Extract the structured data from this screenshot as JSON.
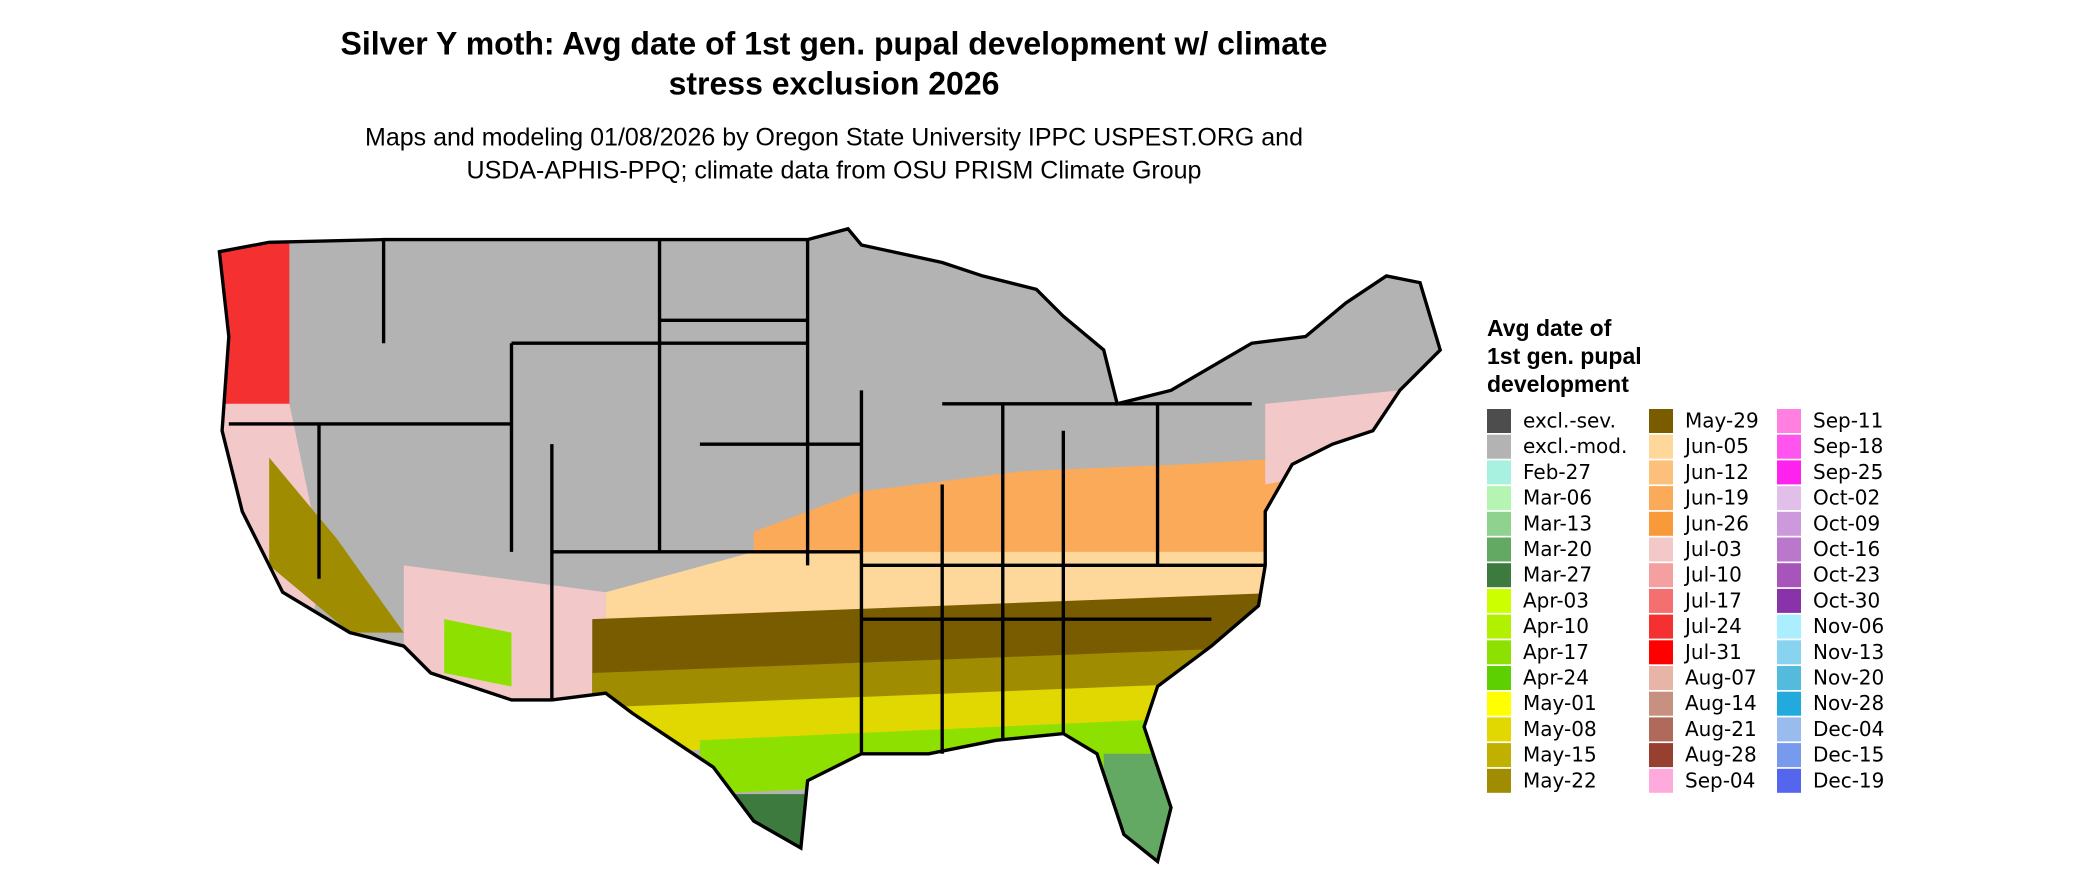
{
  "title": [
    "Silver Y moth: Avg date of 1st gen. pupal development w/ climate",
    "stress exclusion 2026"
  ],
  "subtitle": [
    "Maps and modeling 01/08/2026 by Oregon State University IPPC USPEST.ORG and",
    "USDA-APHIS-PPQ; climate data from OSU PRISM Climate Group"
  ],
  "legend": {
    "title": [
      "Avg date of",
      "1st gen. pupal",
      "development"
    ],
    "items": [
      {
        "label": "excl.-sev.",
        "color": "#4d4d4d"
      },
      {
        "label": "excl.-mod.",
        "color": "#b3b3b3"
      },
      {
        "label": "Feb-27",
        "color": "#a8f0e0"
      },
      {
        "label": "Mar-06",
        "color": "#b4f5b4"
      },
      {
        "label": "Mar-13",
        "color": "#8fd18f"
      },
      {
        "label": "Mar-20",
        "color": "#63a863"
      },
      {
        "label": "Mar-27",
        "color": "#3d7a3d"
      },
      {
        "label": "Apr-03",
        "color": "#ccff00"
      },
      {
        "label": "Apr-10",
        "color": "#b0f000"
      },
      {
        "label": "Apr-17",
        "color": "#8ee000"
      },
      {
        "label": "Apr-24",
        "color": "#5cd000"
      },
      {
        "label": "May-01",
        "color": "#ffff00"
      },
      {
        "label": "May-08",
        "color": "#e0d800"
      },
      {
        "label": "May-15",
        "color": "#c0b000"
      },
      {
        "label": "May-22",
        "color": "#a08c00"
      },
      {
        "label": "May-29",
        "color": "#7a5c00"
      },
      {
        "label": "Jun-05",
        "color": "#fdd89a"
      },
      {
        "label": "Jun-12",
        "color": "#fcc07a"
      },
      {
        "label": "Jun-19",
        "color": "#fbaa5a"
      },
      {
        "label": "Jun-26",
        "color": "#f99a3a"
      },
      {
        "label": "Jul-03",
        "color": "#f3c8c8"
      },
      {
        "label": "Jul-10",
        "color": "#f4a0a0"
      },
      {
        "label": "Jul-17",
        "color": "#f47070"
      },
      {
        "label": "Jul-24",
        "color": "#f43030"
      },
      {
        "label": "Jul-31",
        "color": "#ff0000"
      },
      {
        "label": "Aug-07",
        "color": "#e8b4a8"
      },
      {
        "label": "Aug-14",
        "color": "#c89080"
      },
      {
        "label": "Aug-21",
        "color": "#b06a5c"
      },
      {
        "label": "Aug-28",
        "color": "#984030"
      },
      {
        "label": "Sep-04",
        "color": "#ffaadd"
      },
      {
        "label": "Sep-11",
        "color": "#ff80e0"
      },
      {
        "label": "Sep-18",
        "color": "#ff55ee"
      },
      {
        "label": "Sep-25",
        "color": "#ff22ee"
      },
      {
        "label": "Oct-02",
        "color": "#e0c0e8"
      },
      {
        "label": "Oct-09",
        "color": "#cc99dd"
      },
      {
        "label": "Oct-16",
        "color": "#bb77cc"
      },
      {
        "label": "Oct-23",
        "color": "#a855bb"
      },
      {
        "label": "Oct-30",
        "color": "#8833aa"
      },
      {
        "label": "Nov-06",
        "color": "#aaeeff"
      },
      {
        "label": "Nov-13",
        "color": "#88d4f0"
      },
      {
        "label": "Nov-20",
        "color": "#55bbdd"
      },
      {
        "label": "Nov-28",
        "color": "#22aadd"
      },
      {
        "label": "Dec-04",
        "color": "#99bbee"
      },
      {
        "label": "Dec-15",
        "color": "#7799ee"
      },
      {
        "label": "Dec-19",
        "color": "#5566ee"
      }
    ]
  }
}
